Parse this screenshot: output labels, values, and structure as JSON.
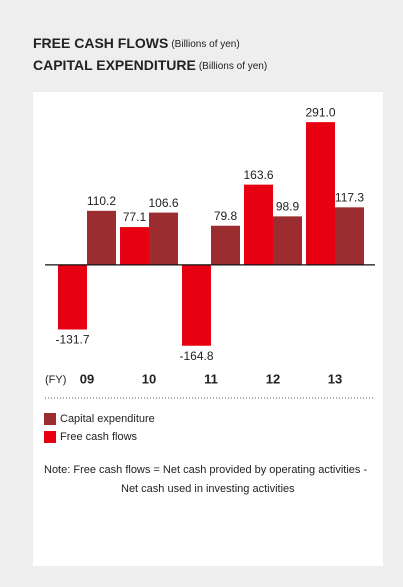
{
  "chart_data": {
    "type": "bar",
    "titles": [
      {
        "name": "FREE CASH FLOWS",
        "unit": "(Billions of yen)"
      },
      {
        "name": "CAPITAL EXPENDITURE",
        "unit": "(Billions of yen)"
      }
    ],
    "x_label": "(FY)",
    "categories": [
      "09",
      "10",
      "11",
      "12",
      "13"
    ],
    "series": [
      {
        "name": "Capital expenditure",
        "color": "#9b2c30",
        "values": [
          110.2,
          106.6,
          79.8,
          98.9,
          117.3
        ]
      },
      {
        "name": "Free cash flows",
        "color": "#e60012",
        "values": [
          -131.7,
          77.1,
          -164.8,
          163.6,
          291.0
        ],
        "value_labels": [
          "-131.7",
          "77.1",
          "-164.8",
          "163.6",
          "291.0"
        ]
      }
    ],
    "ylim": [
      -200,
      330
    ],
    "note": [
      "Note: Free cash flows = Net cash provided by operating activities -",
      "Net cash used in investing activities"
    ]
  }
}
